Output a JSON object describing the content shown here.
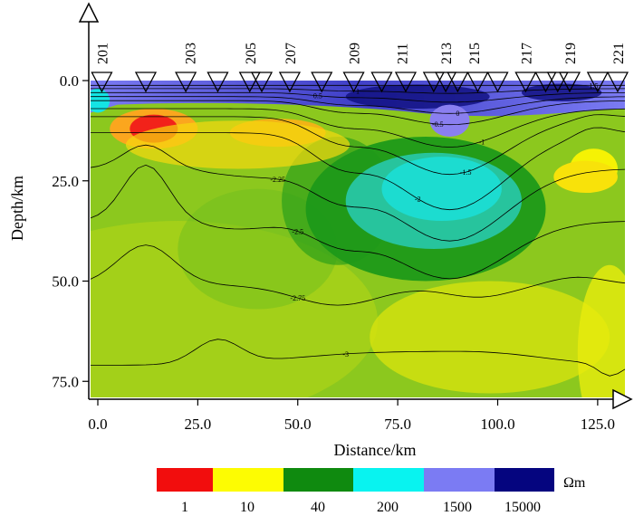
{
  "chart_data": {
    "type": "heatmap",
    "title": "",
    "xlabel": "Distance/km",
    "ylabel": "Depth/km",
    "xlim": [
      -2,
      132
    ],
    "ylim": [
      0,
      79
    ],
    "x_ticks": [
      "0.0",
      "25.0",
      "50.0",
      "75.0",
      "100.0",
      "125.0"
    ],
    "x_tick_values": [
      0,
      25,
      50,
      75,
      100,
      125
    ],
    "y_ticks": [
      "0.0",
      "25.0",
      "50.0",
      "75.0"
    ],
    "y_tick_values": [
      0,
      25,
      50,
      75
    ],
    "stations": [
      {
        "label": "201",
        "x": 1
      },
      {
        "label": "203",
        "x": 23
      },
      {
        "label": "205",
        "x": 38
      },
      {
        "label": "207",
        "x": 48
      },
      {
        "label": "209",
        "x": 64
      },
      {
        "label": "211",
        "x": 76
      },
      {
        "label": "213",
        "x": 87
      },
      {
        "label": "215",
        "x": 94
      },
      {
        "label": "217",
        "x": 107
      },
      {
        "label": "219",
        "x": 118
      },
      {
        "label": "221",
        "x": 130
      }
    ],
    "site_markers_x": [
      1,
      12,
      22,
      30,
      38,
      41,
      48,
      56,
      64,
      71,
      77,
      84,
      87,
      90,
      95,
      100,
      107,
      112,
      115,
      118,
      125,
      130
    ],
    "contour_values": [
      "-3",
      "-2.75",
      "-2.5",
      "-2.25",
      "-2",
      "-1.5",
      "-1",
      "-0.5",
      "0",
      "0.5",
      "1",
      "1.5"
    ],
    "colorbar": {
      "unit": "Ωm",
      "labels": [
        "1",
        "10",
        "40",
        "200",
        "1500",
        "15000"
      ],
      "colors": [
        "#f20d0d",
        "#fdfc02",
        "#0f8a0f",
        "#08f3f0",
        "#7b7bf3",
        "#05057f"
      ]
    }
  }
}
